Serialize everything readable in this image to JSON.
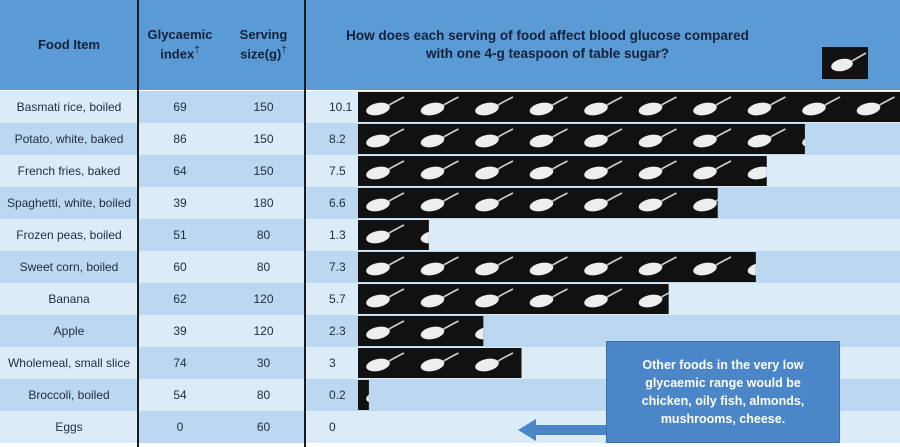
{
  "header": {
    "food_item": "Food Item",
    "glycaemic_index": "Glycaemic index",
    "serving_size": "Serving size(g)",
    "dagger": "†",
    "question": "How does each serving of food affect blood glucose compared with one 4-g teaspoon of table sugar?"
  },
  "note": "Other foods in the very low glycaemic range would be chicken, oily fish, almonds, mushrooms, cheese.",
  "colors": {
    "header_blue": "#5b9bd5",
    "row_light": "#dcebf8",
    "row_mid": "#bcd8f0",
    "spoon_bg": "#111111",
    "note_blue": "#4a86c8",
    "arrow_blue": "#4a86c8"
  },
  "chart_data": {
    "type": "bar",
    "unit_icon": "teaspoon-of-sugar-icon",
    "categories": [
      "Basmati rice, boiled",
      "Potato, white, baked",
      "French fries, baked",
      "Spaghetti, white, boiled",
      "Frozen peas, boiled",
      "Sweet corn, boiled",
      "Banana",
      "Apple",
      "Wholemeal, small slice",
      "Broccoli, boiled",
      "Eggs"
    ],
    "series": [
      {
        "name": "Glycaemic index",
        "values": [
          69,
          86,
          64,
          39,
          51,
          60,
          62,
          39,
          74,
          54,
          0
        ]
      },
      {
        "name": "Serving size(g)",
        "values": [
          150,
          150,
          150,
          180,
          80,
          80,
          120,
          120,
          30,
          80,
          60
        ]
      },
      {
        "values": [
          10.1,
          8.2,
          7.5,
          6.6,
          1.3,
          7.3,
          5.7,
          2.3,
          3,
          0.2,
          0
        ]
      }
    ],
    "xlim": [
      0,
      10.1
    ]
  },
  "rows": [
    {
      "food": "Basmati rice, boiled",
      "gi": "69",
      "serving": "150",
      "teaspoons": "10.1"
    },
    {
      "food": "Potato, white, baked",
      "gi": "86",
      "serving": "150",
      "teaspoons": "8.2"
    },
    {
      "food": "French fries, baked",
      "gi": "64",
      "serving": "150",
      "teaspoons": "7.5"
    },
    {
      "food": "Spaghetti, white, boiled",
      "gi": "39",
      "serving": "180",
      "teaspoons": "6.6"
    },
    {
      "food": "Frozen peas, boiled",
      "gi": "51",
      "serving": "80",
      "teaspoons": "1.3"
    },
    {
      "food": "Sweet corn, boiled",
      "gi": "60",
      "serving": "80",
      "teaspoons": "7.3"
    },
    {
      "food": "Banana",
      "gi": "62",
      "serving": "120",
      "teaspoons": "5.7"
    },
    {
      "food": "Apple",
      "gi": "39",
      "serving": "120",
      "teaspoons": "2.3"
    },
    {
      "food": "Wholemeal, small slice",
      "gi": "74",
      "serving": "30",
      "teaspoons": "3"
    },
    {
      "food": "Broccoli, boiled",
      "gi": "54",
      "serving": "80",
      "teaspoons": "0.2"
    },
    {
      "food": "Eggs",
      "gi": "0",
      "serving": "60",
      "teaspoons": "0"
    }
  ]
}
